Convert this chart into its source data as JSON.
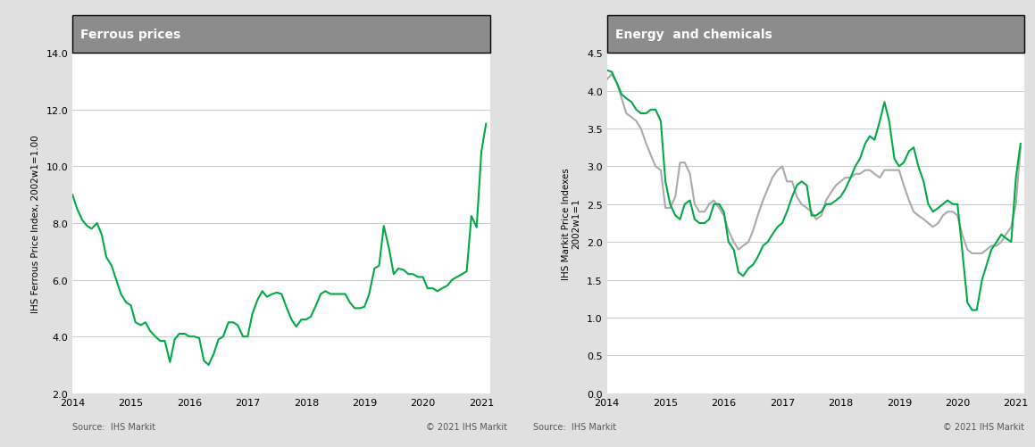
{
  "title_left": "Ferrous prices",
  "title_right": "Energy  and chemicals",
  "ylabel_left": "IHS Ferrous Price Index, 2002w1=1.00",
  "ylabel_right": "IHS Markit Price Indexes\n2002w1=1",
  "source_text": "Source:  IHS Markit",
  "copyright_text": "© 2021 IHS Markit",
  "header_color": "#8c8c8c",
  "header_text_color": "#ffffff",
  "green_color": "#00aa44",
  "grey_color": "#aaaaaa",
  "background_color": "#ffffff",
  "plot_bg_color": "#ffffff",
  "grid_color": "#cccccc",
  "ferrous_x": [
    2014.0,
    2014.08,
    2014.17,
    2014.25,
    2014.33,
    2014.42,
    2014.5,
    2014.58,
    2014.67,
    2014.75,
    2014.83,
    2014.92,
    2015.0,
    2015.08,
    2015.17,
    2015.25,
    2015.33,
    2015.42,
    2015.5,
    2015.58,
    2015.67,
    2015.75,
    2015.83,
    2015.92,
    2016.0,
    2016.08,
    2016.17,
    2016.25,
    2016.33,
    2016.42,
    2016.5,
    2016.58,
    2016.67,
    2016.75,
    2016.83,
    2016.92,
    2017.0,
    2017.08,
    2017.17,
    2017.25,
    2017.33,
    2017.42,
    2017.5,
    2017.58,
    2017.67,
    2017.75,
    2017.83,
    2017.92,
    2018.0,
    2018.08,
    2018.17,
    2018.25,
    2018.33,
    2018.42,
    2018.5,
    2018.58,
    2018.67,
    2018.75,
    2018.83,
    2018.92,
    2019.0,
    2019.08,
    2019.17,
    2019.25,
    2019.33,
    2019.42,
    2019.5,
    2019.58,
    2019.67,
    2019.75,
    2019.83,
    2019.92,
    2020.0,
    2020.08,
    2020.17,
    2020.25,
    2020.33,
    2020.42,
    2020.5,
    2020.58,
    2020.67,
    2020.75,
    2020.83,
    2020.92,
    2021.0,
    2021.08
  ],
  "ferrous_y": [
    9.0,
    8.5,
    8.1,
    7.9,
    7.8,
    8.0,
    7.6,
    6.8,
    6.5,
    6.0,
    5.5,
    5.2,
    5.1,
    4.5,
    4.4,
    4.5,
    4.2,
    4.0,
    3.85,
    3.85,
    3.1,
    3.9,
    4.1,
    4.1,
    4.0,
    4.0,
    3.95,
    3.15,
    3.0,
    3.4,
    3.9,
    4.0,
    4.5,
    4.5,
    4.4,
    4.0,
    4.0,
    4.8,
    5.3,
    5.6,
    5.4,
    5.5,
    5.55,
    5.5,
    5.0,
    4.6,
    4.35,
    4.6,
    4.6,
    4.7,
    5.1,
    5.5,
    5.6,
    5.5,
    5.5,
    5.5,
    5.5,
    5.2,
    5.0,
    5.0,
    5.05,
    5.5,
    6.4,
    6.5,
    7.9,
    7.1,
    6.2,
    6.4,
    6.35,
    6.2,
    6.2,
    6.1,
    6.1,
    5.7,
    5.7,
    5.6,
    5.7,
    5.8,
    6.0,
    6.1,
    6.2,
    6.3,
    8.25,
    7.85,
    10.5,
    11.5
  ],
  "energy_x": [
    2014.0,
    2014.08,
    2014.17,
    2014.25,
    2014.33,
    2014.42,
    2014.5,
    2014.58,
    2014.67,
    2014.75,
    2014.83,
    2014.92,
    2015.0,
    2015.08,
    2015.17,
    2015.25,
    2015.33,
    2015.42,
    2015.5,
    2015.58,
    2015.67,
    2015.75,
    2015.83,
    2015.92,
    2016.0,
    2016.08,
    2016.17,
    2016.25,
    2016.33,
    2016.42,
    2016.5,
    2016.58,
    2016.67,
    2016.75,
    2016.83,
    2016.92,
    2017.0,
    2017.08,
    2017.17,
    2017.25,
    2017.33,
    2017.42,
    2017.5,
    2017.58,
    2017.67,
    2017.75,
    2017.83,
    2017.92,
    2018.0,
    2018.08,
    2018.17,
    2018.25,
    2018.33,
    2018.42,
    2018.5,
    2018.58,
    2018.67,
    2018.75,
    2018.83,
    2018.92,
    2019.0,
    2019.08,
    2019.17,
    2019.25,
    2019.33,
    2019.42,
    2019.5,
    2019.58,
    2019.67,
    2019.75,
    2019.83,
    2019.92,
    2020.0,
    2020.08,
    2020.17,
    2020.25,
    2020.33,
    2020.42,
    2020.5,
    2020.58,
    2020.67,
    2020.75,
    2020.83,
    2020.92,
    2021.0,
    2021.08
  ],
  "energy_y": [
    4.27,
    4.25,
    4.1,
    3.95,
    3.9,
    3.85,
    3.75,
    3.7,
    3.7,
    3.75,
    3.75,
    3.6,
    2.8,
    2.5,
    2.35,
    2.3,
    2.5,
    2.55,
    2.3,
    2.25,
    2.25,
    2.3,
    2.5,
    2.5,
    2.4,
    2.0,
    1.9,
    1.6,
    1.55,
    1.65,
    1.7,
    1.8,
    1.95,
    2.0,
    2.1,
    2.2,
    2.25,
    2.4,
    2.6,
    2.75,
    2.8,
    2.75,
    2.35,
    2.35,
    2.4,
    2.5,
    2.5,
    2.55,
    2.6,
    2.7,
    2.85,
    3.0,
    3.1,
    3.3,
    3.4,
    3.35,
    3.6,
    3.85,
    3.6,
    3.1,
    3.0,
    3.05,
    3.2,
    3.25,
    3.0,
    2.8,
    2.5,
    2.4,
    2.45,
    2.5,
    2.55,
    2.5,
    2.5,
    1.9,
    1.2,
    1.1,
    1.1,
    1.5,
    1.7,
    1.9,
    2.0,
    2.1,
    2.05,
    2.0,
    2.85,
    3.3
  ],
  "chemicals_x": [
    2014.0,
    2014.08,
    2014.17,
    2014.25,
    2014.33,
    2014.42,
    2014.5,
    2014.58,
    2014.67,
    2014.75,
    2014.83,
    2014.92,
    2015.0,
    2015.08,
    2015.17,
    2015.25,
    2015.33,
    2015.42,
    2015.5,
    2015.58,
    2015.67,
    2015.75,
    2015.83,
    2015.92,
    2016.0,
    2016.08,
    2016.17,
    2016.25,
    2016.33,
    2016.42,
    2016.5,
    2016.58,
    2016.67,
    2016.75,
    2016.83,
    2016.92,
    2017.0,
    2017.08,
    2017.17,
    2017.25,
    2017.33,
    2017.42,
    2017.5,
    2017.58,
    2017.67,
    2017.75,
    2017.83,
    2017.92,
    2018.0,
    2018.08,
    2018.17,
    2018.25,
    2018.33,
    2018.42,
    2018.5,
    2018.58,
    2018.67,
    2018.75,
    2018.83,
    2018.92,
    2019.0,
    2019.08,
    2019.17,
    2019.25,
    2019.33,
    2019.42,
    2019.5,
    2019.58,
    2019.67,
    2019.75,
    2019.83,
    2019.92,
    2020.0,
    2020.08,
    2020.17,
    2020.25,
    2020.33,
    2020.42,
    2020.5,
    2020.58,
    2020.67,
    2020.75,
    2020.83,
    2020.92,
    2021.0,
    2021.08
  ],
  "chemicals_y": [
    4.15,
    4.22,
    4.1,
    3.9,
    3.7,
    3.65,
    3.6,
    3.5,
    3.3,
    3.15,
    3.0,
    2.95,
    2.45,
    2.45,
    2.6,
    3.05,
    3.05,
    2.9,
    2.5,
    2.4,
    2.4,
    2.5,
    2.55,
    2.45,
    2.35,
    2.15,
    2.0,
    1.9,
    1.95,
    2.0,
    2.15,
    2.35,
    2.55,
    2.7,
    2.85,
    2.95,
    3.0,
    2.8,
    2.8,
    2.6,
    2.5,
    2.45,
    2.4,
    2.3,
    2.35,
    2.55,
    2.65,
    2.75,
    2.8,
    2.85,
    2.85,
    2.9,
    2.9,
    2.95,
    2.95,
    2.9,
    2.85,
    2.95,
    2.95,
    2.95,
    2.95,
    2.75,
    2.55,
    2.4,
    2.35,
    2.3,
    2.25,
    2.2,
    2.25,
    2.35,
    2.4,
    2.4,
    2.35,
    2.1,
    1.9,
    1.85,
    1.85,
    1.85,
    1.9,
    1.95,
    1.95,
    2.0,
    2.1,
    2.2,
    2.5,
    3.25
  ],
  "ferrous_ylim": [
    2.0,
    14.0
  ],
  "ferrous_yticks": [
    2.0,
    4.0,
    6.0,
    8.0,
    10.0,
    12.0,
    14.0
  ],
  "ferrous_xticks": [
    2014,
    2015,
    2016,
    2017,
    2018,
    2019,
    2020,
    2021
  ],
  "energy_ylim": [
    0.0,
    4.5
  ],
  "energy_yticks": [
    0.0,
    0.5,
    1.0,
    1.5,
    2.0,
    2.5,
    3.0,
    3.5,
    4.0,
    4.5
  ],
  "energy_xticks": [
    2014,
    2015,
    2016,
    2017,
    2018,
    2019,
    2020,
    2021
  ]
}
